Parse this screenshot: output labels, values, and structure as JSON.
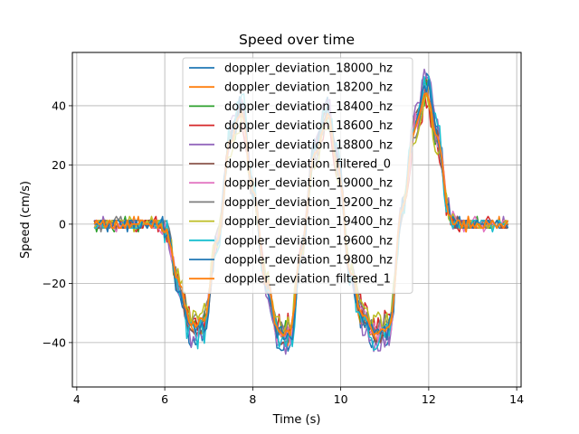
{
  "chart_data": {
    "type": "line",
    "title": "Speed over time",
    "xlabel": "Time (s)",
    "ylabel": "Speed (cm/s)",
    "xlim": [
      3.9,
      14.1
    ],
    "ylim": [
      -55,
      58
    ],
    "xticks": [
      4,
      6,
      8,
      10,
      12,
      14
    ],
    "yticks": [
      -40,
      -20,
      0,
      20,
      40
    ],
    "grid": true,
    "legend_position": "upper center",
    "series": [
      {
        "name": "doppler_deviation_18000_hz",
        "color": "#1f77b4",
        "seed": 1,
        "noise": 2.2
      },
      {
        "name": "doppler_deviation_18200_hz",
        "color": "#ff7f0e",
        "seed": 2,
        "noise": 2.0
      },
      {
        "name": "doppler_deviation_18400_hz",
        "color": "#2ca02c",
        "seed": 3,
        "noise": 2.4
      },
      {
        "name": "doppler_deviation_18600_hz",
        "color": "#d62728",
        "seed": 4,
        "noise": 2.8
      },
      {
        "name": "doppler_deviation_18800_hz",
        "color": "#9467bd",
        "seed": 5,
        "noise": 2.2
      },
      {
        "name": "doppler_deviation_filtered_0",
        "color": "#8c564b",
        "seed": 6,
        "noise": 1.0
      },
      {
        "name": "doppler_deviation_19000_hz",
        "color": "#e377c2",
        "seed": 7,
        "noise": 2.2
      },
      {
        "name": "doppler_deviation_19200_hz",
        "color": "#7f7f7f",
        "seed": 8,
        "noise": 2.2
      },
      {
        "name": "doppler_deviation_19400_hz",
        "color": "#bcbd22",
        "seed": 9,
        "noise": 2.4
      },
      {
        "name": "doppler_deviation_19600_hz",
        "color": "#17becf",
        "seed": 10,
        "noise": 3.2
      },
      {
        "name": "doppler_deviation_19800_hz",
        "color": "#1f77b4",
        "seed": 11,
        "noise": 2.4
      },
      {
        "name": "doppler_deviation_filtered_1",
        "color": "#ff7f0e",
        "seed": 12,
        "noise": 1.0
      }
    ],
    "envelope": {
      "x": [
        4.4,
        5.9,
        6.05,
        6.3,
        6.6,
        6.9,
        7.2,
        7.5,
        7.75,
        8.0,
        8.3,
        8.6,
        8.85,
        9.1,
        9.4,
        9.7,
        9.95,
        10.2,
        10.5,
        10.8,
        11.1,
        11.4,
        11.7,
        11.95,
        12.2,
        12.45,
        12.6,
        13.8
      ],
      "y": [
        0,
        0,
        -3,
        -20,
        -36,
        -34,
        -5,
        30,
        40,
        12,
        -20,
        -38,
        -38,
        -10,
        25,
        38,
        20,
        -15,
        -32,
        -38,
        -36,
        5,
        35,
        47,
        30,
        5,
        0,
        0
      ]
    }
  }
}
